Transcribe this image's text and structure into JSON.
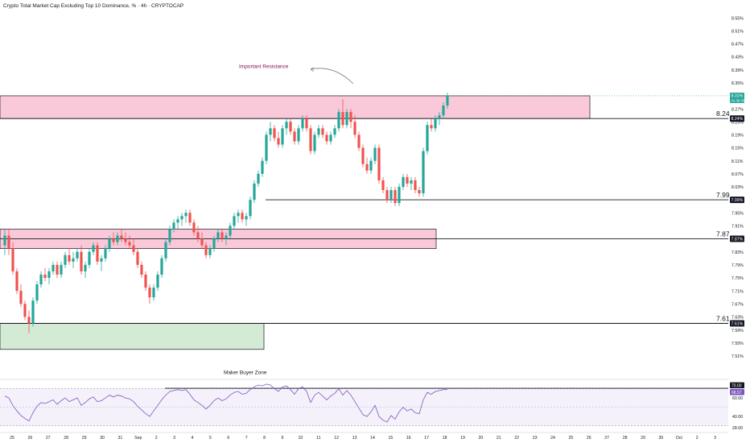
{
  "header": {
    "title": "Crypto Total Market Cap Excluding Top 10 Dominance, % · 4h · CRYPTOCAP"
  },
  "colors": {
    "up": "#26a69a",
    "down": "#ef5350",
    "resistance_zone": "#f8bbd0",
    "buyer_zone": "#c8e6c9",
    "rsi_line": "#7e57c2",
    "rsi_band": "#ede7f6",
    "annotation": "#880e4f"
  },
  "chart_data": [
    {
      "type": "candlestick",
      "title": "Crypto Total Market Cap Excluding Top 10 Dominance, % · 4h · CRYPTOCAP",
      "ylim": [
        7.47,
        8.57
      ],
      "y_ticks": [
        "8.55%",
        "8.51%",
        "8.47%",
        "8.43%",
        "8.39%",
        "8.35%",
        "8.31%",
        "8.27%",
        "8.23%",
        "8.19%",
        "8.15%",
        "8.11%",
        "8.07%",
        "8.03%",
        "7.99%",
        "7.95%",
        "7.91%",
        "7.87%",
        "7.83%",
        "7.79%",
        "7.75%",
        "7.71%",
        "7.67%",
        "7.63%",
        "7.59%",
        "7.55%",
        "7.51%"
      ],
      "x_ticks": [
        "25",
        "26",
        "27",
        "28",
        "29",
        "30",
        "31",
        "Sep",
        "2",
        "3",
        "4",
        "5",
        "6",
        "7",
        "8",
        "9",
        "10",
        "11",
        "12",
        "13",
        "14",
        "15",
        "16",
        "17",
        "18",
        "19",
        "20",
        "21",
        "22",
        "23",
        "24",
        "25",
        "26",
        "27",
        "28",
        "29",
        "30",
        "Oct",
        "2",
        "3"
      ],
      "candles_index_start": 0,
      "candles": [
        [
          7.85,
          7.9,
          7.82,
          7.88
        ],
        [
          7.88,
          7.9,
          7.82,
          7.84
        ],
        [
          7.84,
          7.86,
          7.76,
          7.77
        ],
        [
          7.77,
          7.78,
          7.7,
          7.71
        ],
        [
          7.71,
          7.73,
          7.66,
          7.67
        ],
        [
          7.67,
          7.68,
          7.62,
          7.63
        ],
        [
          7.63,
          7.65,
          7.58,
          7.61
        ],
        [
          7.61,
          7.69,
          7.6,
          7.68
        ],
        [
          7.68,
          7.74,
          7.67,
          7.73
        ],
        [
          7.73,
          7.77,
          7.72,
          7.76
        ],
        [
          7.76,
          7.78,
          7.74,
          7.75
        ],
        [
          7.75,
          7.78,
          7.73,
          7.77
        ],
        [
          7.77,
          7.8,
          7.76,
          7.79
        ],
        [
          7.79,
          7.8,
          7.75,
          7.76
        ],
        [
          7.76,
          7.8,
          7.75,
          7.79
        ],
        [
          7.79,
          7.83,
          7.78,
          7.82
        ],
        [
          7.82,
          7.84,
          7.79,
          7.8
        ],
        [
          7.8,
          7.83,
          7.78,
          7.81
        ],
        [
          7.81,
          7.84,
          7.8,
          7.83
        ],
        [
          7.83,
          7.85,
          7.76,
          7.77
        ],
        [
          7.77,
          7.8,
          7.75,
          7.79
        ],
        [
          7.79,
          7.84,
          7.78,
          7.83
        ],
        [
          7.83,
          7.86,
          7.82,
          7.85
        ],
        [
          7.85,
          7.86,
          7.79,
          7.8
        ],
        [
          7.8,
          7.82,
          7.77,
          7.81
        ],
        [
          7.81,
          7.85,
          7.8,
          7.84
        ],
        [
          7.84,
          7.88,
          7.83,
          7.87
        ],
        [
          7.87,
          7.89,
          7.85,
          7.86
        ],
        [
          7.86,
          7.89,
          7.85,
          7.88
        ],
        [
          7.88,
          7.9,
          7.86,
          7.87
        ],
        [
          7.87,
          7.89,
          7.85,
          7.86
        ],
        [
          7.86,
          7.88,
          7.84,
          7.85
        ],
        [
          7.85,
          7.87,
          7.82,
          7.83
        ],
        [
          7.83,
          7.84,
          7.78,
          7.79
        ],
        [
          7.79,
          7.8,
          7.75,
          7.76
        ],
        [
          7.76,
          7.77,
          7.71,
          7.72
        ],
        [
          7.72,
          7.73,
          7.67,
          7.69
        ],
        [
          7.69,
          7.73,
          7.68,
          7.72
        ],
        [
          7.72,
          7.77,
          7.71,
          7.76
        ],
        [
          7.76,
          7.82,
          7.75,
          7.81
        ],
        [
          7.81,
          7.87,
          7.8,
          7.86
        ],
        [
          7.86,
          7.91,
          7.85,
          7.9
        ],
        [
          7.9,
          7.93,
          7.89,
          7.92
        ],
        [
          7.92,
          7.94,
          7.9,
          7.93
        ],
        [
          7.93,
          7.95,
          7.91,
          7.94
        ],
        [
          7.94,
          7.96,
          7.92,
          7.95
        ],
        [
          7.95,
          7.96,
          7.91,
          7.92
        ],
        [
          7.92,
          7.93,
          7.88,
          7.89
        ],
        [
          7.89,
          7.91,
          7.86,
          7.87
        ],
        [
          7.87,
          7.89,
          7.84,
          7.85
        ],
        [
          7.85,
          7.86,
          7.81,
          7.82
        ],
        [
          7.82,
          7.85,
          7.81,
          7.84
        ],
        [
          7.84,
          7.88,
          7.83,
          7.87
        ],
        [
          7.87,
          7.9,
          7.86,
          7.89
        ],
        [
          7.89,
          7.9,
          7.86,
          7.87
        ],
        [
          7.87,
          7.89,
          7.85,
          7.88
        ],
        [
          7.88,
          7.92,
          7.87,
          7.91
        ],
        [
          7.91,
          7.95,
          7.9,
          7.94
        ],
        [
          7.94,
          7.96,
          7.92,
          7.95
        ],
        [
          7.95,
          7.96,
          7.92,
          7.93
        ],
        [
          7.93,
          7.95,
          7.91,
          7.94
        ],
        [
          7.94,
          8.0,
          7.93,
          7.99
        ],
        [
          7.99,
          8.05,
          7.98,
          8.04
        ],
        [
          8.04,
          8.08,
          8.03,
          8.07
        ],
        [
          8.07,
          8.12,
          8.06,
          8.11
        ],
        [
          8.11,
          8.2,
          8.1,
          8.19
        ],
        [
          8.19,
          8.23,
          8.17,
          8.21
        ],
        [
          8.21,
          8.22,
          8.17,
          8.18
        ],
        [
          8.18,
          8.2,
          8.15,
          8.16
        ],
        [
          8.16,
          8.22,
          8.15,
          8.21
        ],
        [
          8.21,
          8.24,
          8.19,
          8.23
        ],
        [
          8.23,
          8.24,
          8.19,
          8.2
        ],
        [
          8.2,
          8.21,
          8.16,
          8.17
        ],
        [
          8.17,
          8.22,
          8.16,
          8.21
        ],
        [
          8.21,
          8.25,
          8.2,
          8.24
        ],
        [
          8.24,
          8.25,
          8.2,
          8.21
        ],
        [
          8.21,
          8.22,
          8.13,
          8.14
        ],
        [
          8.14,
          8.2,
          8.13,
          8.19
        ],
        [
          8.19,
          8.22,
          8.18,
          8.21
        ],
        [
          8.21,
          8.22,
          8.18,
          8.19
        ],
        [
          8.19,
          8.2,
          8.16,
          8.17
        ],
        [
          8.17,
          8.2,
          8.16,
          8.19
        ],
        [
          8.19,
          8.22,
          8.18,
          8.21
        ],
        [
          8.21,
          8.27,
          8.2,
          8.26
        ],
        [
          8.26,
          8.3,
          8.21,
          8.22
        ],
        [
          8.22,
          8.27,
          8.21,
          8.26
        ],
        [
          8.26,
          8.27,
          8.21,
          8.23
        ],
        [
          8.23,
          8.25,
          8.18,
          8.19
        ],
        [
          8.19,
          8.2,
          8.14,
          8.15
        ],
        [
          8.15,
          8.16,
          8.09,
          8.1
        ],
        [
          8.1,
          8.12,
          8.07,
          8.08
        ],
        [
          8.08,
          8.12,
          8.07,
          8.11
        ],
        [
          8.11,
          8.16,
          8.1,
          8.15
        ],
        [
          8.15,
          8.16,
          8.04,
          8.05
        ],
        [
          8.05,
          8.06,
          8.01,
          8.02
        ],
        [
          8.02,
          8.03,
          7.98,
          7.99
        ],
        [
          7.99,
          8.03,
          7.98,
          8.02
        ],
        [
          8.02,
          8.03,
          7.97,
          7.98
        ],
        [
          7.98,
          8.04,
          7.97,
          8.03
        ],
        [
          8.03,
          8.07,
          8.02,
          8.06
        ],
        [
          8.06,
          8.07,
          8.03,
          8.04
        ],
        [
          8.04,
          8.06,
          8.02,
          8.05
        ],
        [
          8.05,
          8.06,
          8.01,
          8.02
        ],
        [
          8.02,
          8.03,
          8.0,
          8.01
        ],
        [
          8.01,
          8.15,
          8.0,
          8.14
        ],
        [
          8.14,
          8.23,
          8.13,
          8.22
        ],
        [
          8.22,
          8.24,
          8.2,
          8.21
        ],
        [
          8.21,
          8.25,
          8.2,
          8.24
        ],
        [
          8.24,
          8.26,
          8.22,
          8.25
        ],
        [
          8.25,
          8.29,
          8.24,
          8.28
        ],
        [
          8.28,
          8.32,
          8.27,
          8.31
        ]
      ],
      "levels": [
        {
          "label": "8.24",
          "axis_label": "8.24%",
          "value": 8.24
        },
        {
          "label": "7.99",
          "axis_label": "7.99%",
          "value": 7.99
        },
        {
          "label": "7.87",
          "axis_label": "7.87%",
          "value": 7.87
        },
        {
          "label": "7.61",
          "axis_label": "7.61%",
          "value": 7.61
        }
      ],
      "last_price": {
        "value_label": "8.31%",
        "countdown": "01:36:33",
        "value": 8.31
      },
      "zones": [
        {
          "name": "Important Resistance",
          "from": 8.24,
          "to": 8.31
        },
        {
          "name": "",
          "from": 7.84,
          "to": 7.9
        },
        {
          "name": "Maker Buyer Zone",
          "from": 7.53,
          "to": 7.61
        }
      ],
      "annotations": [
        "Important Resistance",
        "Maker Buyer Zone"
      ]
    },
    {
      "type": "line",
      "name": "RSI",
      "ylim": [
        27,
        74
      ],
      "y_ticks": [
        "60.00",
        "40.00",
        "28.00"
      ],
      "levels": [
        70,
        50,
        30
      ],
      "top_label": "70.00",
      "current_label": "68.57",
      "values": [
        62,
        60,
        52,
        46,
        41,
        38,
        35,
        44,
        51,
        55,
        54,
        56,
        58,
        53,
        57,
        60,
        56,
        58,
        60,
        52,
        55,
        59,
        61,
        56,
        57,
        60,
        63,
        61,
        63,
        62,
        60,
        59,
        56,
        51,
        47,
        43,
        40,
        46,
        52,
        58,
        63,
        67,
        68,
        69,
        68,
        69,
        64,
        58,
        55,
        52,
        48,
        52,
        57,
        60,
        57,
        59,
        63,
        66,
        67,
        64,
        65,
        69,
        72,
        74,
        73,
        75,
        74,
        70,
        67,
        72,
        73,
        69,
        64,
        70,
        72,
        67,
        55,
        63,
        66,
        62,
        58,
        62,
        65,
        70,
        63,
        68,
        63,
        56,
        49,
        42,
        40,
        45,
        52,
        40,
        36,
        34,
        41,
        37,
        45,
        50,
        46,
        48,
        44,
        43,
        58,
        66,
        64,
        67,
        68,
        69,
        69
      ]
    }
  ]
}
